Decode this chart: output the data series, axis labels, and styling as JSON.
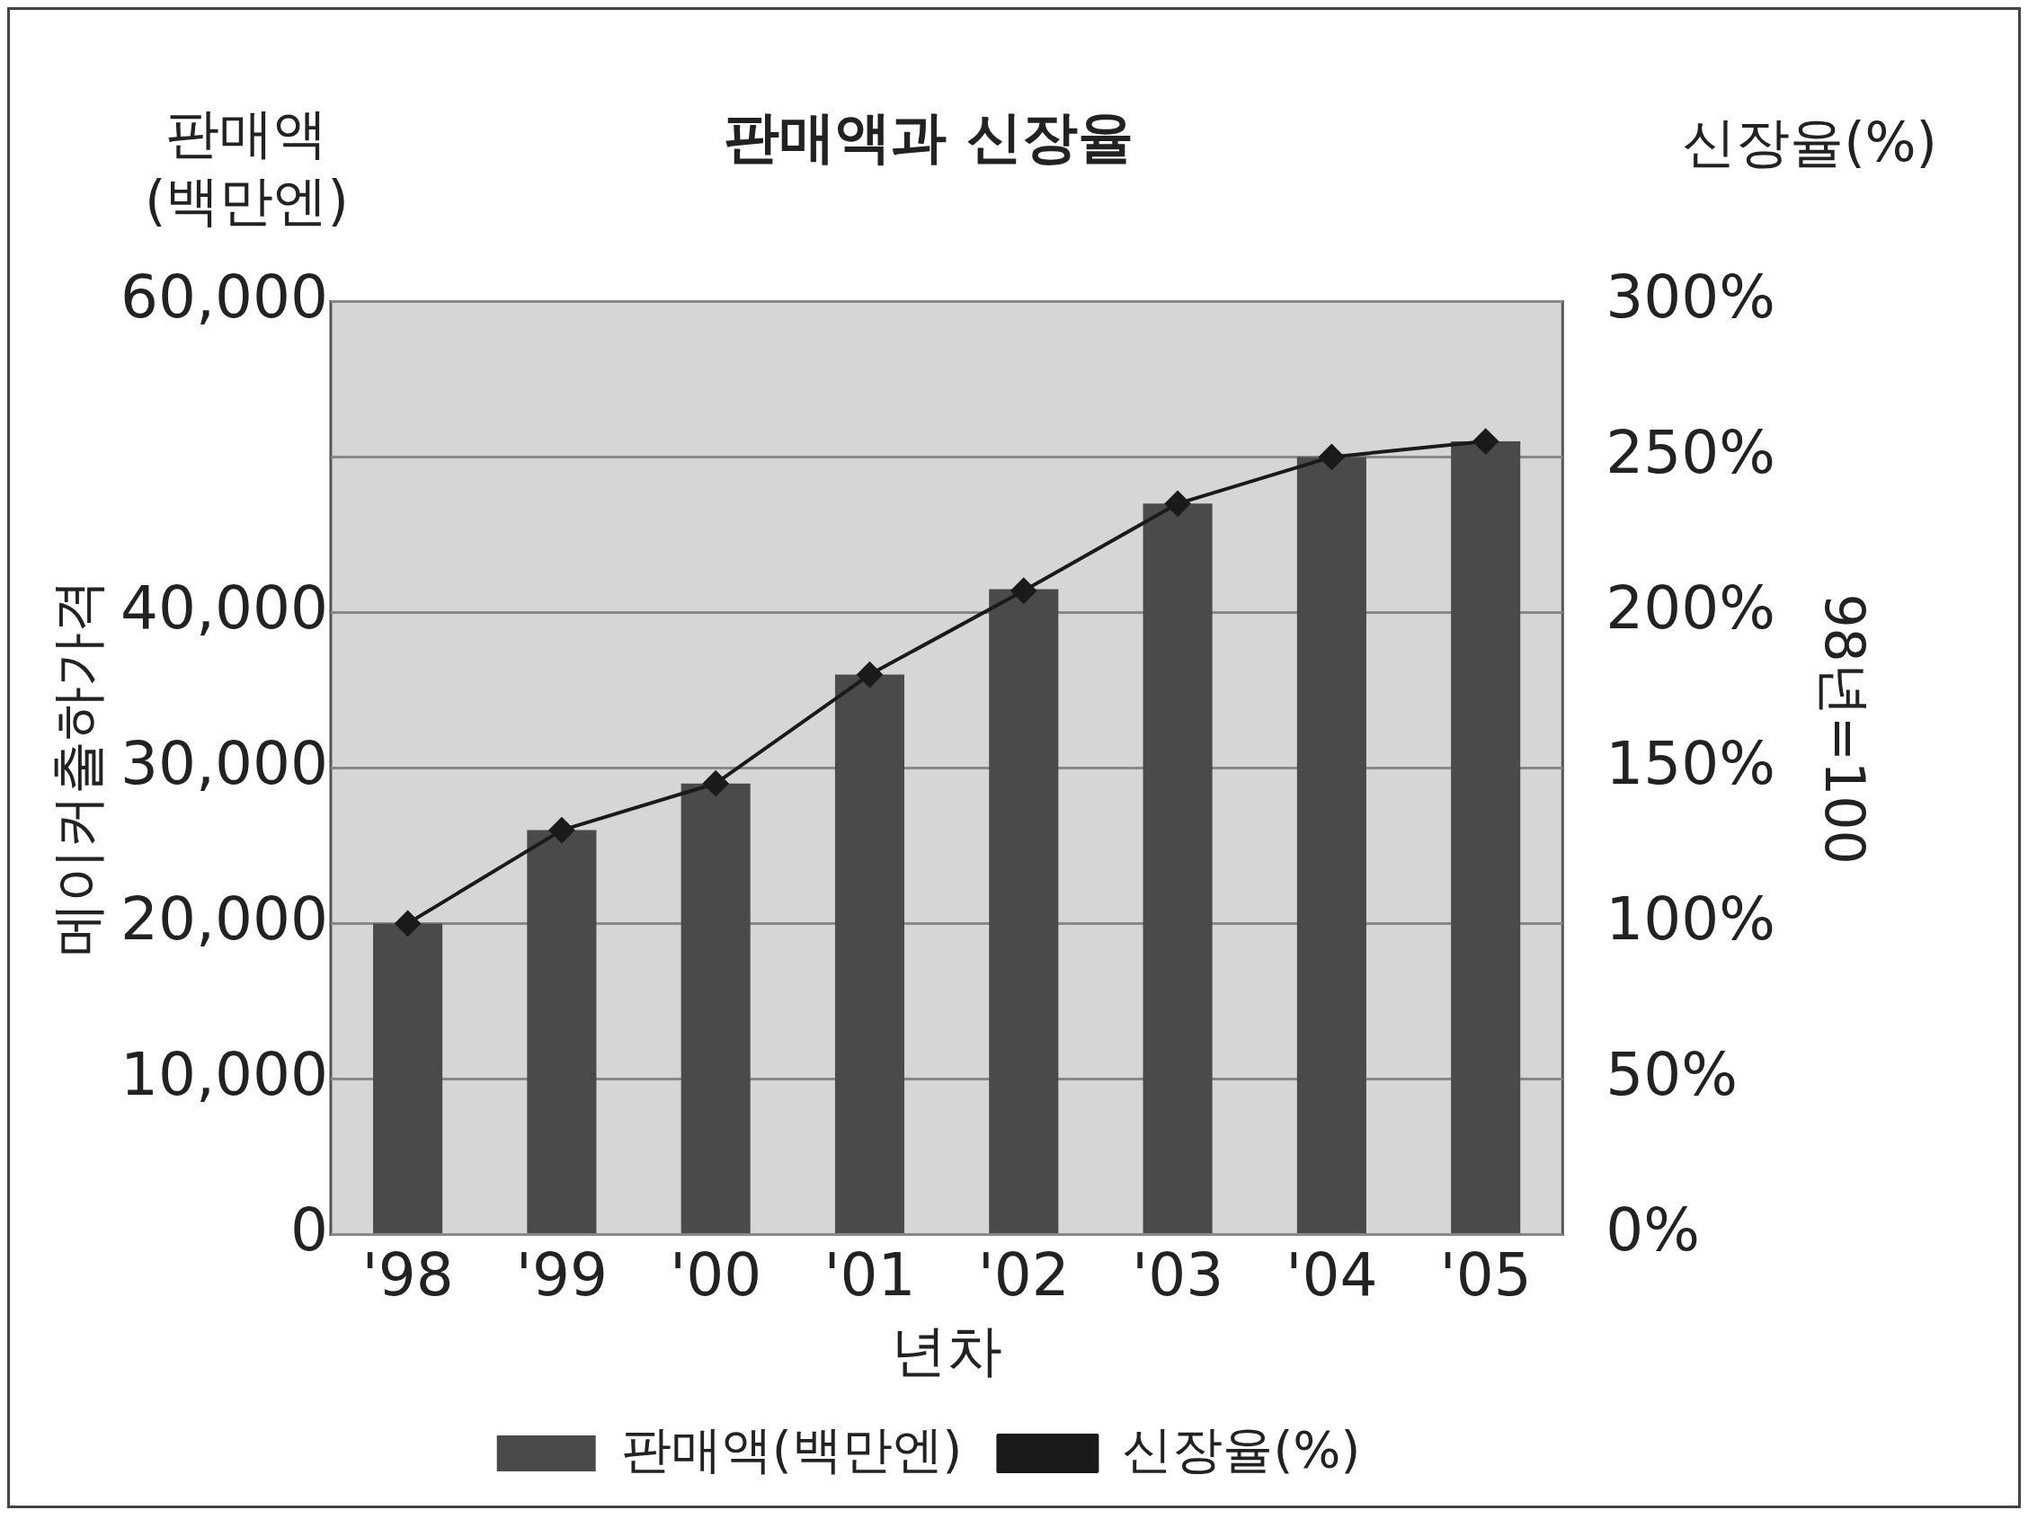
{
  "chart_data": {
    "type": "bar",
    "title": "판매액과 신장율",
    "xlabel": "년차",
    "ylabel": "메이커출하가격",
    "y2label": "신장율(%)",
    "annotations": [
      "판매액\n(백만엔)",
      "98년=100"
    ],
    "categories": [
      "'98",
      "'99",
      "'00",
      "'01",
      "'02",
      "'03",
      "'04",
      "'05"
    ],
    "series": [
      {
        "name": "판매액(백만엔)",
        "color": "#4a4a4a",
        "values": [
          20000,
          26000,
          29000,
          36000,
          41500,
          47000,
          50000,
          51000
        ]
      },
      {
        "name": "신장율(%)",
        "type": "line",
        "axis": "y2",
        "color": "#1a1a1a",
        "values": [
          100,
          130,
          145,
          180,
          207,
          235,
          250,
          255
        ]
      }
    ],
    "ylim": [
      0,
      60000
    ],
    "yticks": [
      {
        "value": 0,
        "label": "0"
      },
      {
        "value": 10000,
        "label": "10,000"
      },
      {
        "value": 20000,
        "label": "20,000"
      },
      {
        "value": 30000,
        "label": "30,000"
      },
      {
        "value": 40000,
        "label": "40,000"
      },
      {
        "value": 50000,
        "label": null
      },
      {
        "value": 60000,
        "label": "60,000"
      }
    ],
    "y2lim": [
      0,
      300
    ],
    "y2ticks": [
      {
        "value": 0,
        "label": "0%"
      },
      {
        "value": 50,
        "label": "50%"
      },
      {
        "value": 100,
        "label": "100%"
      },
      {
        "value": 150,
        "label": "150%"
      },
      {
        "value": 200,
        "label": "200%"
      },
      {
        "value": 250,
        "label": "250%"
      },
      {
        "value": 300,
        "label": "300%"
      }
    ],
    "grid": "y",
    "legend": "bottom",
    "marker": "diamond"
  }
}
